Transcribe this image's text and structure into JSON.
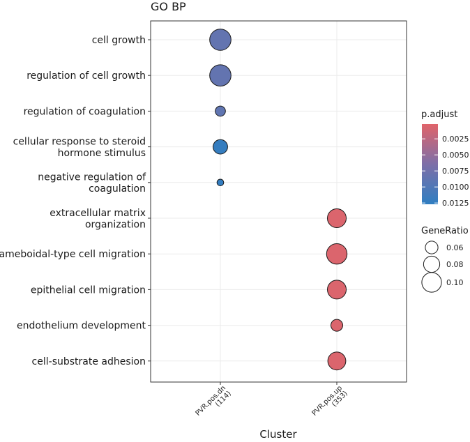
{
  "chart_data": {
    "type": "scatter",
    "title": "GO BP",
    "xlabel": "Cluster",
    "ylabel": "",
    "categories_x": [
      [
        "PVR.pos.dn",
        "(114)"
      ],
      [
        "PVR.pos.up",
        "(353)"
      ]
    ],
    "categories_y": [
      [
        "cell growth"
      ],
      [
        "regulation of cell growth"
      ],
      [
        "regulation of coagulation"
      ],
      [
        "cellular response to steroid",
        "hormone stimulus"
      ],
      [
        "negative regulation of",
        "coagulation"
      ],
      [
        "extracellular matrix",
        "organization"
      ],
      [
        "ameboidal-type cell migration"
      ],
      [
        "epithelial cell migration"
      ],
      [
        "endothelium development"
      ],
      [
        "cell-substrate adhesion"
      ]
    ],
    "points": [
      {
        "x": 0,
        "y": 0,
        "gene_ratio": 0.11,
        "p_adjust": 0.0085
      },
      {
        "x": 0,
        "y": 1,
        "gene_ratio": 0.11,
        "p_adjust": 0.0085
      },
      {
        "x": 0,
        "y": 2,
        "gene_ratio": 0.045,
        "p_adjust": 0.0088
      },
      {
        "x": 0,
        "y": 3,
        "gene_ratio": 0.07,
        "p_adjust": 0.0122
      },
      {
        "x": 0,
        "y": 4,
        "gene_ratio": 0.025,
        "p_adjust": 0.0124
      },
      {
        "x": 1,
        "y": 5,
        "gene_ratio": 0.095,
        "p_adjust": 0.0005
      },
      {
        "x": 1,
        "y": 6,
        "gene_ratio": 0.105,
        "p_adjust": 0.0005
      },
      {
        "x": 1,
        "y": 7,
        "gene_ratio": 0.095,
        "p_adjust": 0.0005
      },
      {
        "x": 1,
        "y": 8,
        "gene_ratio": 0.055,
        "p_adjust": 0.0005
      },
      {
        "x": 1,
        "y": 9,
        "gene_ratio": 0.09,
        "p_adjust": 0.0005
      }
    ],
    "legend_color": {
      "title": "p.adjust",
      "ticks": [
        "0.0025",
        "0.0050",
        "0.0075",
        "0.0100",
        "0.0125"
      ],
      "tick_values": [
        0.0025,
        0.005,
        0.0075,
        0.01,
        0.0125
      ],
      "range": [
        0.0002,
        0.0127
      ],
      "low_color": "#e0646a",
      "mid_color": "#7d6fa8",
      "high_color": "#2f7ec1"
    },
    "legend_size": {
      "title": "GeneRatio",
      "ticks": [
        "0.06",
        "0.08",
        "0.10"
      ],
      "tick_values": [
        0.06,
        0.08,
        0.1
      ]
    },
    "grid": true,
    "legend_position": "right"
  }
}
